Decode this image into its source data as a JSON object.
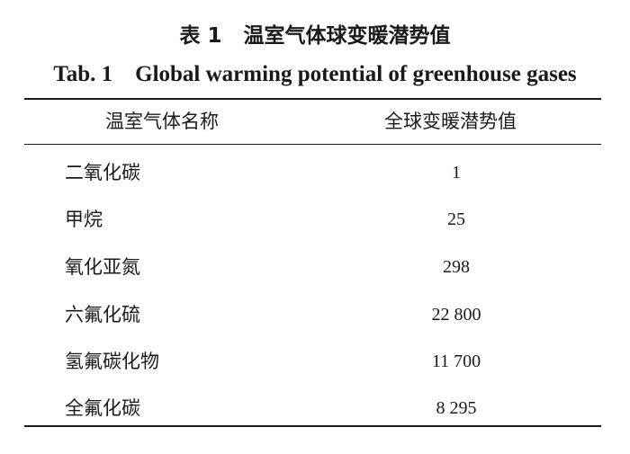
{
  "table": {
    "title_cn": "表 1   温室气体球变暖潜势值",
    "title_en": "Tab. 1    Global warming potential of greenhouse gases",
    "columns": [
      "温室气体名称",
      "全球变暖潜势值"
    ],
    "rows": [
      {
        "name": "二氧化碳",
        "value": "1"
      },
      {
        "name": "甲烷",
        "value": "25"
      },
      {
        "name": "氧化亚氮",
        "value": "298"
      },
      {
        "name": "六氟化硫",
        "value": "22 800"
      },
      {
        "name": "氢氟碳化物",
        "value": "11 700"
      },
      {
        "name": "全氟化碳",
        "value": "8 295"
      }
    ]
  }
}
